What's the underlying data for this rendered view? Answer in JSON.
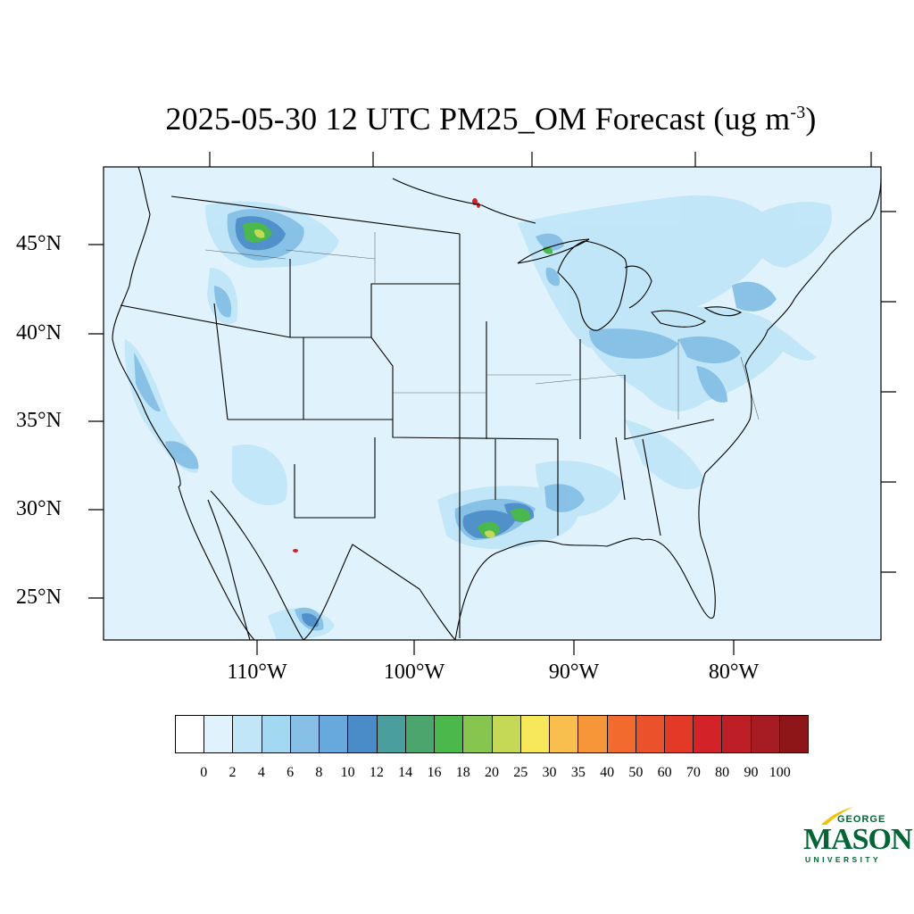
{
  "title": {
    "main": "2025-05-30 12 UTC PM25_OM Forecast (ug m",
    "sup": "-3",
    "close": ")"
  },
  "lat_labels": [
    "45°N",
    "40°N",
    "35°N",
    "30°N",
    "25°N"
  ],
  "lon_labels": [
    "110°W",
    "100°W",
    "90°W",
    "80°W"
  ],
  "colorbar": {
    "ticks": [
      "0",
      "2",
      "4",
      "6",
      "8",
      "10",
      "12",
      "14",
      "16",
      "18",
      "20",
      "25",
      "30",
      "35",
      "40",
      "50",
      "60",
      "70",
      "80",
      "90",
      "100"
    ],
    "colors": [
      "#ffffff",
      "#e0f3fc",
      "#c0e6f8",
      "#a3d8f3",
      "#86c0e6",
      "#67a9dc",
      "#4a8cc8",
      "#4a9e9b",
      "#4aa66d",
      "#4ab84a",
      "#86c64e",
      "#c6d957",
      "#f7e75a",
      "#f8be4e",
      "#f69639",
      "#f36a2e",
      "#eb512b",
      "#e33a27",
      "#d32228",
      "#be1e26",
      "#a61c22",
      "#8e1618"
    ]
  },
  "logo": {
    "top": "GEORGE",
    "main": "MASON",
    "bottom": "UNIVERSITY"
  },
  "colors": {
    "background_field": "#e0f3fc",
    "logo_green": "#006633",
    "logo_gold": "#f2c200"
  }
}
